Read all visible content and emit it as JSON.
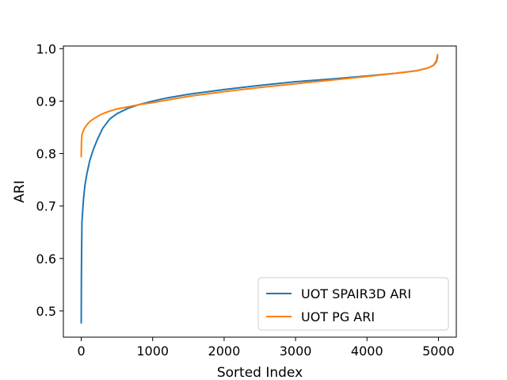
{
  "chart_data": {
    "type": "line",
    "title": "",
    "xlabel": "Sorted Index",
    "ylabel": "ARI",
    "xlim": [
      -250,
      5250
    ],
    "ylim": [
      0.45,
      1.005
    ],
    "xticks": [
      0,
      1000,
      2000,
      3000,
      4000,
      5000
    ],
    "xtick_labels": [
      "0",
      "1000",
      "2000",
      "3000",
      "4000",
      "5000"
    ],
    "yticks": [
      0.5,
      0.6,
      0.7,
      0.8,
      0.9,
      1.0
    ],
    "ytick_labels": [
      "0.5",
      "0.6",
      "0.7",
      "0.8",
      "0.9",
      "1.0"
    ],
    "grid": false,
    "legend_position": "lower-right",
    "series": [
      {
        "name": "UOT SPAIR3D ARI",
        "color": "#1f77b4",
        "x": [
          0,
          2,
          5,
          10,
          20,
          30,
          50,
          80,
          120,
          170,
          230,
          300,
          400,
          500,
          650,
          800,
          1000,
          1200,
          1500,
          2000,
          2500,
          3000,
          3500,
          4000,
          4400,
          4700,
          4850,
          4930,
          4970,
          4990
        ],
        "y": [
          0.476,
          0.56,
          0.61,
          0.67,
          0.69,
          0.71,
          0.738,
          0.762,
          0.787,
          0.808,
          0.828,
          0.848,
          0.866,
          0.876,
          0.886,
          0.893,
          0.9,
          0.906,
          0.913,
          0.922,
          0.93,
          0.937,
          0.942,
          0.948,
          0.953,
          0.958,
          0.963,
          0.968,
          0.975,
          0.985
        ]
      },
      {
        "name": "UOT PG ARI",
        "color": "#ff7f0e",
        "x": [
          0,
          2,
          5,
          10,
          20,
          30,
          50,
          80,
          120,
          170,
          230,
          300,
          400,
          500,
          650,
          800,
          1000,
          1200,
          1500,
          2000,
          2500,
          3000,
          3500,
          4000,
          4400,
          4700,
          4850,
          4930,
          4970,
          4990
        ],
        "y": [
          0.793,
          0.815,
          0.825,
          0.835,
          0.84,
          0.844,
          0.849,
          0.855,
          0.861,
          0.866,
          0.871,
          0.876,
          0.881,
          0.885,
          0.889,
          0.893,
          0.897,
          0.902,
          0.909,
          0.918,
          0.926,
          0.933,
          0.94,
          0.947,
          0.953,
          0.958,
          0.963,
          0.968,
          0.977,
          0.99
        ]
      }
    ]
  }
}
